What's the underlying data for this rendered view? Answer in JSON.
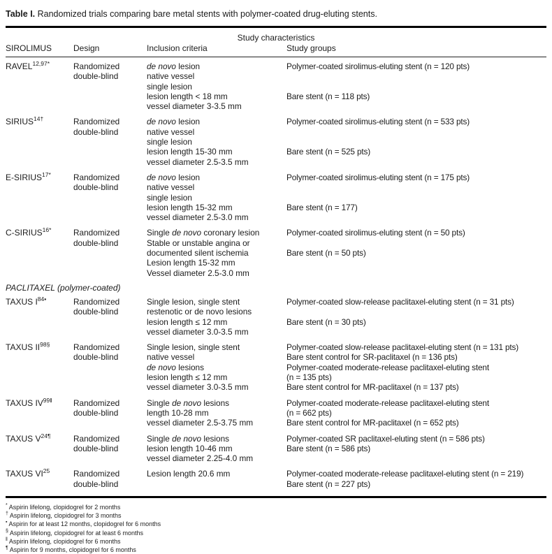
{
  "title": {
    "label": "Table I.",
    "text": " Randomized trials comparing bare metal stents with polymer-coated drug-eluting stents."
  },
  "header": {
    "group": "Study characteristics",
    "columns": [
      "SIROLIMUS",
      "Design",
      "Inclusion criteria",
      "Study groups"
    ]
  },
  "sections": [
    {
      "heading": "",
      "rows": [
        {
          "trial": "RAVEL",
          "sup": "12,97*",
          "design": [
            "Randomized",
            "double-blind"
          ],
          "inclusion": [
            "*de novo* lesion",
            "native vessel",
            "single lesion",
            "lesion length < 18 mm",
            "vessel diameter 3-3.5 mm"
          ],
          "groups": [
            "Polymer-coated sirolimus-eluting stent (n = 120 pts)",
            "",
            "",
            "Bare stent (n = 118 pts)",
            ""
          ]
        },
        {
          "trial": "SIRIUS",
          "sup": "14†",
          "design": [
            "Randomized",
            "double-blind"
          ],
          "inclusion": [
            "*de novo* lesion",
            "native vessel",
            "single lesion",
            "lesion length 15-30 mm",
            "vessel diameter 2.5-3.5 mm"
          ],
          "groups": [
            "Polymer-coated sirolimus-eluting stent (n = 533 pts)",
            "",
            "",
            "Bare stent (n = 525 pts)",
            ""
          ]
        },
        {
          "trial": "E-SIRIUS",
          "sup": "17*",
          "design": [
            "Randomized",
            "double-blind"
          ],
          "inclusion": [
            "*de novo* lesion",
            "native vessel",
            "single lesion",
            "lesion length 15-32 mm",
            "vessel diameter 2.5-3.0 mm"
          ],
          "groups": [
            "Polymer-coated sirolimus-eluting stent (n = 175 pts)",
            "",
            "",
            "Bare stent (n = 177)",
            ""
          ]
        },
        {
          "trial": "C-SIRIUS",
          "sup": "16*",
          "design": [
            "Randomized",
            "double-blind"
          ],
          "inclusion": [
            "Single *de novo* coronary lesion",
            "Stable or unstable angina or",
            "documented silent ischemia",
            "Lesion length 15-32 mm",
            "Vessel diameter 2.5-3.0 mm"
          ],
          "groups": [
            "Polymer-coated sirolimus-eluting stent (n = 50 pts)",
            "",
            "Bare stent (n = 50 pts)",
            "",
            ""
          ]
        }
      ]
    },
    {
      "heading": "PACLITAXEL (polymer-coated)",
      "rows": [
        {
          "trial": "TAXUS I",
          "sup": "84▪",
          "design": [
            "Randomized",
            "double-blind"
          ],
          "inclusion": [
            "Single lesion, single stent",
            "restenotic or de novo lesions",
            "lesion length ≤ 12 mm",
            "vessel diameter 3.0-3.5 mm"
          ],
          "groups": [
            "Polymer-coated slow-release paclitaxel-eluting stent (n = 31 pts)",
            "",
            "Bare stent (n = 30 pts)",
            ""
          ]
        },
        {
          "trial": "TAXUS II",
          "sup": "98§",
          "design": [
            "Randomized",
            "double-blind"
          ],
          "inclusion": [
            "Single lesion, single stent",
            "native vessel",
            "*de novo* lesions",
            "lesion length ≤ 12 mm",
            "vessel diameter 3.0-3.5 mm"
          ],
          "groups": [
            "Polymer-coated slow-release paclitaxel-eluting stent (n = 131 pts)",
            "Bare stent control for SR-paclitaxel (n = 136 pts)",
            "Polymer-coated moderate-release paclitaxel-eluting stent",
            "(n = 135 pts)",
            "Bare stent control for MR-paclitaxel (n = 137 pts)"
          ]
        },
        {
          "trial": "TAXUS IV",
          "sup": "99‖",
          "design": [
            "Randomized",
            "double-blind"
          ],
          "inclusion": [
            "Single *de novo* lesions",
            "length 10-28 mm",
            "vessel diameter 2.5-3.75 mm"
          ],
          "groups": [
            "Polymer-coated moderate-release paclitaxel-eluting stent",
            "(n = 662 pts)",
            "Bare stent control for MR-paclitaxel (n = 652 pts)"
          ]
        },
        {
          "trial": "TAXUS V",
          "sup": "24¶",
          "design": [
            "Randomized",
            "double-blind"
          ],
          "inclusion": [
            "Single *de novo* lesions",
            "lesion length 10-46 mm",
            "vessel diameter 2.25-4.0 mm"
          ],
          "groups": [
            "Polymer-coated SR paclitaxel-eluting stent (n = 586 pts)",
            "Bare stent (n = 586 pts)",
            ""
          ]
        },
        {
          "trial": "TAXUS VI",
          "sup": "25",
          "design": [
            "Randomized",
            "double-blind"
          ],
          "inclusion": [
            "Lesion length 20.6 mm"
          ],
          "groups": [
            "Polymer-coated moderate-release paclitaxel-eluting stent (n = 219)",
            "Bare stent (n = 227 pts)"
          ]
        }
      ]
    }
  ],
  "footnotes": [
    {
      "symbol": "*",
      "text": "Aspirin lifelong, clopidogrel for 2 months"
    },
    {
      "symbol": "†",
      "text": "Aspirin lifelong, clopidogrel for 3 months"
    },
    {
      "symbol": "▪",
      "text": "Aspirin for at least 12 months, clopidogrel for 6 months"
    },
    {
      "symbol": "§",
      "text": "Aspirin lifelong, clopidogrel for at least 6 months"
    },
    {
      "symbol": "‖",
      "text": "Aspirin lifelong, clopidogrel for 6 months"
    },
    {
      "symbol": "¶",
      "text": "Aspirin for 9 months, clopidogrel for 6 months"
    }
  ]
}
